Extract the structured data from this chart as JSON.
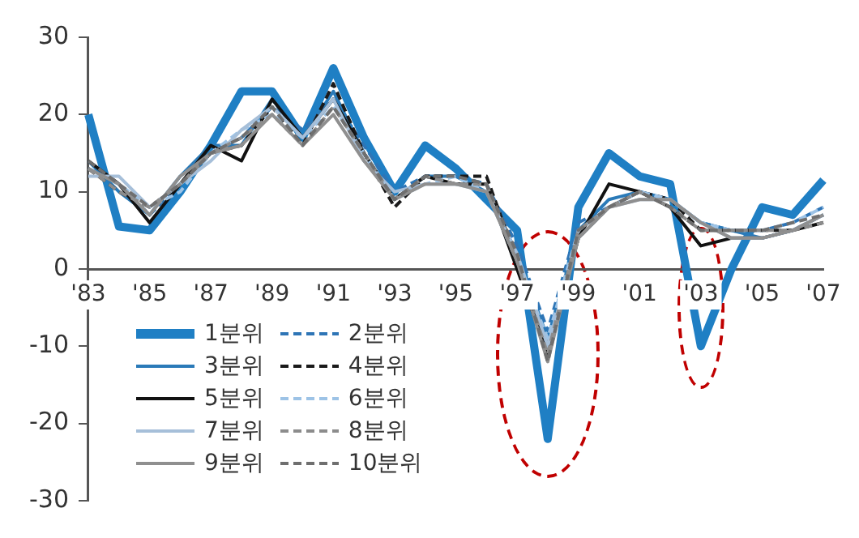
{
  "chart_data": {
    "type": "line",
    "categories": [
      "'83",
      null,
      "'85",
      null,
      "'87",
      null,
      "'89",
      null,
      "'91",
      null,
      "'93",
      null,
      "'95",
      null,
      "'97",
      null,
      "'99",
      null,
      "'01",
      null,
      "'03",
      null,
      "'05",
      null,
      "'07"
    ],
    "ylim": [
      -30,
      30
    ],
    "yticks": [
      -30,
      -20,
      -10,
      0,
      10,
      20,
      30
    ],
    "grid": false,
    "legend": "bottom left",
    "marker": "none",
    "series": [
      {
        "name": "1분위",
        "color": "#1f7fc4",
        "line_style": "solid",
        "values": [
          20,
          5.5,
          5,
          10,
          16,
          23,
          23,
          17,
          26,
          17,
          10,
          16,
          13,
          9,
          5,
          -22,
          8,
          15,
          12,
          11,
          -10,
          0,
          8,
          7,
          11.5
        ]
      },
      {
        "name": "2분위",
        "color": "#2e75b6",
        "line_style": "dashed",
        "values": [
          13,
          11,
          7,
          11,
          15,
          17,
          21,
          18,
          22,
          16,
          10,
          12,
          12,
          11,
          3,
          -8,
          6,
          8,
          10,
          9,
          6,
          5,
          5,
          6,
          8
        ]
      },
      {
        "name": "3분위",
        "color": "#2a7ab8",
        "line_style": "solid",
        "values": [
          14,
          10,
          7,
          12,
          16,
          16,
          22,
          17,
          23,
          15,
          9,
          12,
          12,
          10,
          2,
          -9,
          5,
          9,
          10,
          9,
          6,
          5,
          4,
          5,
          7
        ]
      },
      {
        "name": "4분위",
        "color": "#1a1a1a",
        "line_style": "dashed",
        "values": [
          13,
          10,
          8,
          11,
          15,
          16,
          21,
          16,
          24,
          15,
          8,
          12,
          12,
          12,
          1,
          -10,
          4,
          8,
          10,
          9,
          5,
          5,
          5,
          5,
          7
        ]
      },
      {
        "name": "5분위",
        "color": "#111111",
        "line_style": "solid",
        "values": [
          14,
          11,
          6,
          11,
          16,
          14,
          22,
          17,
          22,
          15,
          9,
          12,
          11,
          11,
          0,
          -11,
          4,
          11,
          10,
          8,
          3,
          4,
          4,
          5,
          6
        ]
      },
      {
        "name": "6분위",
        "color": "#9dc3e6",
        "line_style": "dashed",
        "values": [
          13,
          11,
          8,
          10,
          15,
          18,
          20,
          17,
          21,
          15,
          9,
          11,
          12,
          10,
          1,
          -9,
          5,
          8,
          10,
          9,
          6,
          5,
          5,
          6,
          8
        ]
      },
      {
        "name": "7분위",
        "color": "#a6bfd9",
        "line_style": "solid",
        "values": [
          12,
          12,
          8,
          11,
          14,
          18,
          21,
          17,
          22,
          14,
          10,
          11,
          11,
          10,
          2,
          -10,
          4,
          8,
          9,
          9,
          6,
          4,
          4,
          5,
          7
        ]
      },
      {
        "name": "8분위",
        "color": "#8c8c8c",
        "line_style": "dashed",
        "values": [
          13,
          10,
          8,
          11,
          15,
          17,
          20,
          16,
          21,
          15,
          9,
          12,
          11,
          11,
          1,
          -11,
          5,
          8,
          10,
          8,
          5,
          5,
          5,
          5,
          6
        ]
      },
      {
        "name": "9분위",
        "color": "#8f8f8f",
        "line_style": "solid",
        "values": [
          13,
          11,
          7,
          12,
          15,
          16,
          20,
          16,
          20,
          14,
          9,
          11,
          11,
          10,
          1,
          -12,
          4,
          8,
          9,
          9,
          6,
          4,
          4,
          5,
          7
        ]
      },
      {
        "name": "10분위",
        "color": "#6f6f6f",
        "line_style": "dashed",
        "values": [
          14,
          11,
          8,
          11,
          15,
          17,
          21,
          16,
          21,
          15,
          9,
          12,
          12,
          11,
          2,
          -12,
          5,
          8,
          10,
          8,
          5,
          5,
          5,
          6,
          7
        ]
      }
    ]
  }
}
